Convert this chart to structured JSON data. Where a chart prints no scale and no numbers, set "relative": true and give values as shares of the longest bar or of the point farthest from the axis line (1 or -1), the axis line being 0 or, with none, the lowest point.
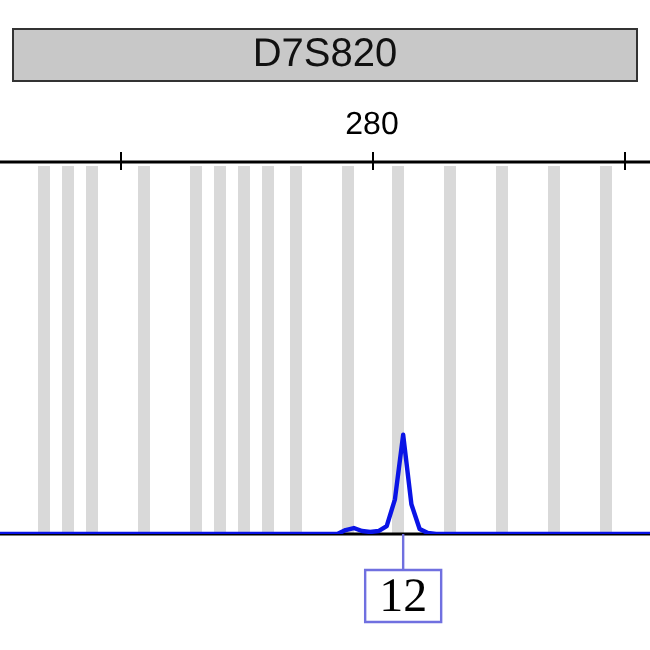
{
  "chart_data": {
    "type": "line",
    "title": "D7S820",
    "relative": true,
    "categories": [
      null,
      null,
      null,
      null,
      null,
      null,
      null,
      null,
      null,
      null,
      null,
      null,
      null,
      null,
      null,
      null,
      null,
      null,
      null,
      null,
      null,
      null,
      null,
      null,
      null,
      null,
      null,
      null,
      null,
      null,
      null,
      null,
      null,
      null,
      null,
      null,
      null,
      null,
      null,
      null,
      null,
      null,
      null,
      null,
      null,
      null,
      null,
      null,
      null,
      null,
      null,
      null,
      null,
      null,
      null,
      null,
      null,
      null,
      null,
      null,
      null,
      null,
      null,
      null,
      null,
      null,
      null,
      null,
      null,
      null,
      null,
      null,
      null,
      null,
      null,
      null,
      null,
      null,
      null,
      null
    ],
    "series": [
      {
        "color": "#0a14e6",
        "values": [
          0,
          0,
          0,
          0,
          0,
          0,
          0,
          0,
          0,
          0,
          0,
          0,
          0,
          0,
          0,
          0,
          0,
          0,
          0,
          0,
          0,
          0,
          0,
          0,
          0,
          0,
          0,
          0,
          0,
          0,
          0,
          0,
          0,
          0,
          0,
          0,
          0,
          0,
          0,
          0,
          0,
          0,
          0.04,
          0.06,
          0.03,
          0.02,
          0.03,
          0.08,
          0.35,
          1,
          0.3,
          0.05,
          0.01,
          0,
          0,
          0,
          0,
          0,
          0,
          0,
          0,
          0,
          0,
          0,
          0,
          0,
          0,
          0,
          0,
          0,
          0,
          0,
          0,
          0,
          0,
          0,
          0,
          0,
          0,
          0
        ]
      }
    ],
    "annotations": [
      "280",
      "12"
    ],
    "legend": false,
    "tick_labels": false,
    "marker": "none",
    "line_style": "solid"
  }
}
